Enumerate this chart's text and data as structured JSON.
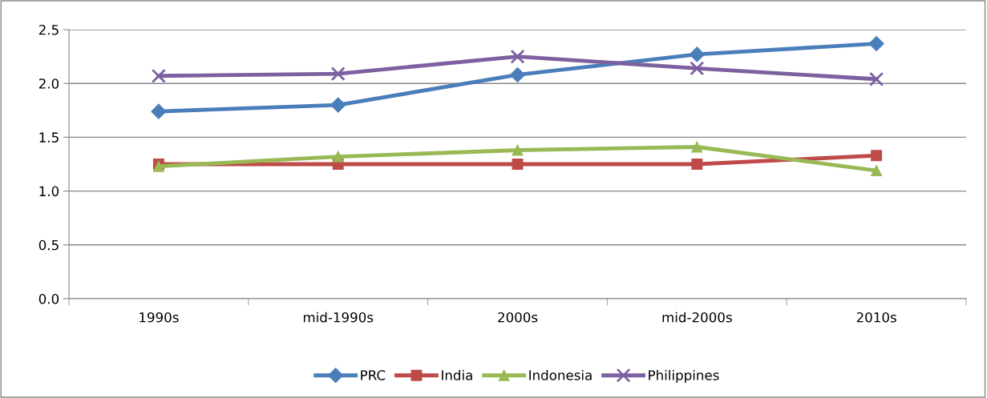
{
  "chart_data": {
    "type": "line",
    "categories": [
      "1990s",
      "mid-1990s",
      "2000s",
      "mid-2000s",
      "2010s"
    ],
    "series": [
      {
        "name": "PRC",
        "color": "#4a7ebb",
        "marker": "diamond",
        "values": [
          1.74,
          1.8,
          2.08,
          2.27,
          2.37
        ]
      },
      {
        "name": "India",
        "color": "#be4b48",
        "marker": "square",
        "values": [
          1.25,
          1.25,
          1.25,
          1.25,
          1.33
        ]
      },
      {
        "name": "Indonesia",
        "color": "#98b954",
        "marker": "triangle",
        "values": [
          1.23,
          1.32,
          1.38,
          1.41,
          1.19
        ]
      },
      {
        "name": "Philippines",
        "color": "#7d60a0",
        "marker": "cross",
        "values": [
          2.07,
          2.09,
          2.25,
          2.14,
          2.04
        ]
      }
    ],
    "ylim": [
      0,
      2.5
    ],
    "yticks": [
      {
        "value": 0,
        "label": "0.0"
      },
      {
        "value": 0.5,
        "label": "0.5"
      },
      {
        "value": 1,
        "label": "1.0"
      },
      {
        "value": 1.5,
        "label": "1.5"
      },
      {
        "value": 2,
        "label": "2.0"
      },
      {
        "value": 2.5,
        "label": "2.5"
      }
    ],
    "grid": "y",
    "legend": "bottom",
    "line_style": "solid"
  }
}
